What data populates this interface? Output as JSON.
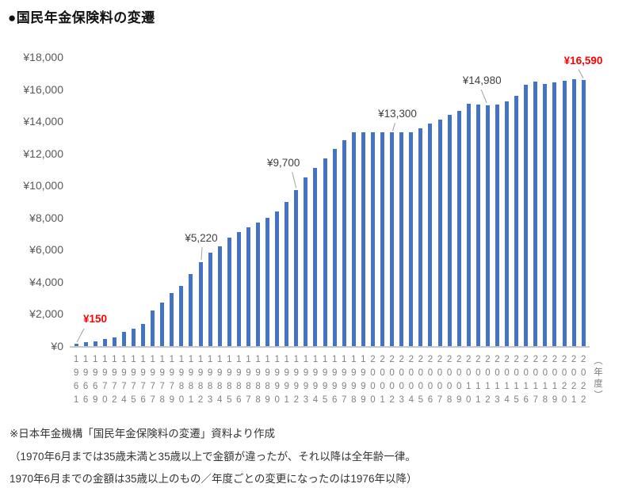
{
  "title": "●国民年金保険料の変遷",
  "chart_data": {
    "type": "bar",
    "title": "国民年金保険料の変遷",
    "xlabel": "（年度）",
    "ylabel": "",
    "ylim": [
      0,
      18000
    ],
    "ytick_step": 2000,
    "ytick_labels": [
      "¥18,000",
      "¥16,000",
      "¥14,000",
      "¥12,000",
      "¥10,000",
      "¥8,000",
      "¥6,000",
      "¥4,000",
      "¥2,000",
      "¥0"
    ],
    "grid": "off",
    "legend": "none",
    "bar_color": "#4472C4",
    "categories": [
      1961,
      1966,
      1969,
      1970,
      1972,
      1974,
      1975,
      1976,
      1977,
      1978,
      1979,
      1980,
      1981,
      1982,
      1983,
      1984,
      1985,
      1986,
      1987,
      1988,
      1989,
      1990,
      1991,
      1992,
      1993,
      1994,
      1995,
      1996,
      1997,
      1998,
      1999,
      2000,
      2001,
      2002,
      2003,
      2004,
      2005,
      2006,
      2007,
      2008,
      2009,
      2010,
      2011,
      2012,
      2013,
      2014,
      2015,
      2016,
      2017,
      2018,
      2019,
      2020,
      2021,
      2022
    ],
    "values": [
      150,
      250,
      300,
      450,
      550,
      900,
      1100,
      1400,
      2200,
      2730,
      3300,
      3770,
      4500,
      5220,
      5830,
      6220,
      6740,
      7100,
      7400,
      7700,
      8000,
      8400,
      9000,
      9700,
      10500,
      11100,
      11700,
      12300,
      12800,
      13300,
      13300,
      13300,
      13300,
      13300,
      13300,
      13300,
      13580,
      13860,
      14100,
      14410,
      14660,
      15100,
      15020,
      14980,
      15040,
      15250,
      15590,
      16260,
      16490,
      16340,
      16410,
      16540,
      16610,
      16590
    ],
    "annotations": [
      {
        "year": 1961,
        "label": "¥150",
        "color": "#FF0000",
        "bold": true
      },
      {
        "year": 1982,
        "label": "¥5,220",
        "color": "#404040",
        "bold": false
      },
      {
        "year": 1992,
        "label": "¥9,700",
        "color": "#404040",
        "bold": false
      },
      {
        "year": 2002,
        "label": "¥13,300",
        "color": "#404040",
        "bold": false
      },
      {
        "year": 2012,
        "label": "¥14,980",
        "color": "#404040",
        "bold": false
      },
      {
        "year": 2022,
        "label": "¥16,590",
        "color": "#FF0000",
        "bold": true
      }
    ],
    "leader_line_color": "#a0a0a0",
    "source_notes": [
      "※日本年金機構「国民年金保険料の変遷」資料より作成",
      "（1970年6月までは35歳未満と35歳以上で金額が違ったが、それ以降は全年齢一律。",
      "1970年6月までの金額は35歳以上のもの／年度ごとの変更になったのは1976年以降）"
    ]
  }
}
